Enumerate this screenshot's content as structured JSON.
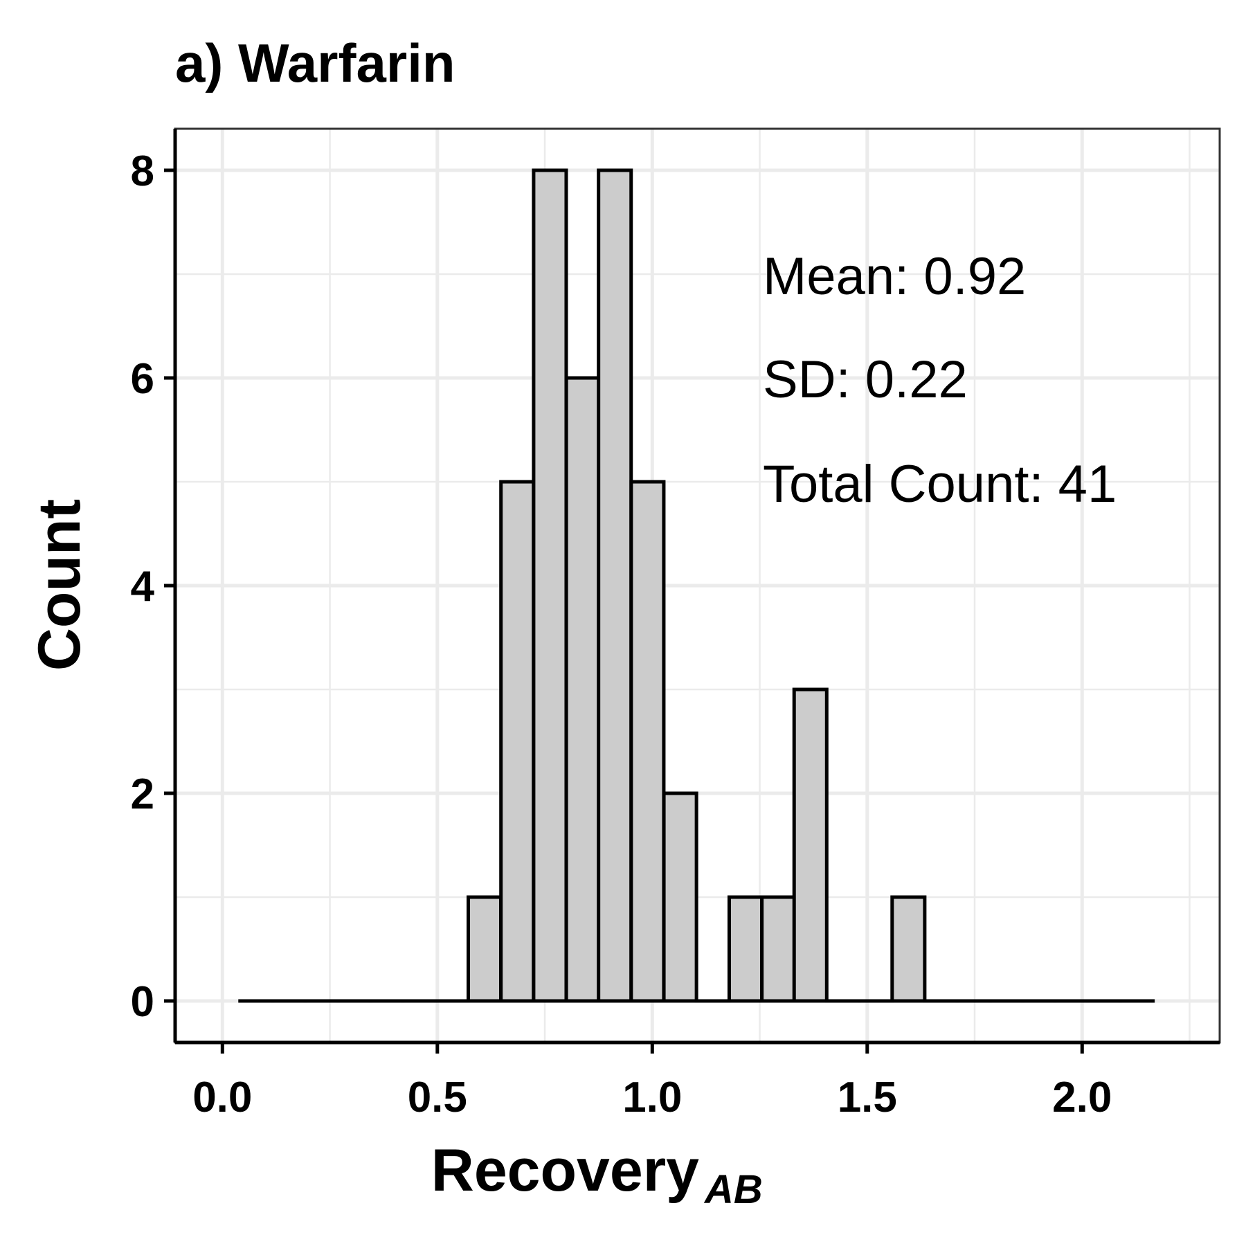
{
  "chart_data": {
    "type": "bar",
    "title": "a) Warfarin",
    "xlabel": "Recovery",
    "xlabel_subscript": "AB",
    "ylabel": "Count",
    "xlim": [
      -0.11,
      2.32
    ],
    "ylim": [
      -0.4,
      8.4
    ],
    "xticks": [
      "0.0",
      "0.5",
      "1.0",
      "1.5",
      "2.0"
    ],
    "xtick_values": [
      0.0,
      0.5,
      1.0,
      1.5,
      2.0
    ],
    "yticks": [
      "0",
      "2",
      "4",
      "6",
      "8"
    ],
    "ytick_values": [
      0,
      2,
      4,
      6,
      8
    ],
    "grid": true,
    "bin_width": 0.0758,
    "bins": [
      {
        "x0": 0.041,
        "count": 0
      },
      {
        "x0": 0.117,
        "count": 0
      },
      {
        "x0": 0.193,
        "count": 0
      },
      {
        "x0": 0.269,
        "count": 0
      },
      {
        "x0": 0.344,
        "count": 0
      },
      {
        "x0": 0.42,
        "count": 0
      },
      {
        "x0": 0.496,
        "count": 0
      },
      {
        "x0": 0.572,
        "count": 1
      },
      {
        "x0": 0.648,
        "count": 5
      },
      {
        "x0": 0.724,
        "count": 8
      },
      {
        "x0": 0.8,
        "count": 6
      },
      {
        "x0": 0.875,
        "count": 8
      },
      {
        "x0": 0.951,
        "count": 5
      },
      {
        "x0": 1.027,
        "count": 2
      },
      {
        "x0": 1.103,
        "count": 0
      },
      {
        "x0": 1.179,
        "count": 1
      },
      {
        "x0": 1.255,
        "count": 1
      },
      {
        "x0": 1.33,
        "count": 3
      },
      {
        "x0": 1.406,
        "count": 0
      },
      {
        "x0": 1.482,
        "count": 0
      },
      {
        "x0": 1.558,
        "count": 1
      },
      {
        "x0": 1.634,
        "count": 0
      },
      {
        "x0": 1.71,
        "count": 0
      },
      {
        "x0": 1.786,
        "count": 0
      },
      {
        "x0": 1.861,
        "count": 0
      },
      {
        "x0": 1.937,
        "count": 0
      },
      {
        "x0": 2.013,
        "count": 0
      },
      {
        "x0": 2.089,
        "count": 0
      }
    ],
    "annotations": [
      "Mean: 0.92",
      "SD: 0.22",
      "Total Count: 41"
    ],
    "colors": {
      "bar_fill": "#cccccc",
      "bar_stroke": "#000000",
      "grid": "#ebebeb"
    }
  }
}
